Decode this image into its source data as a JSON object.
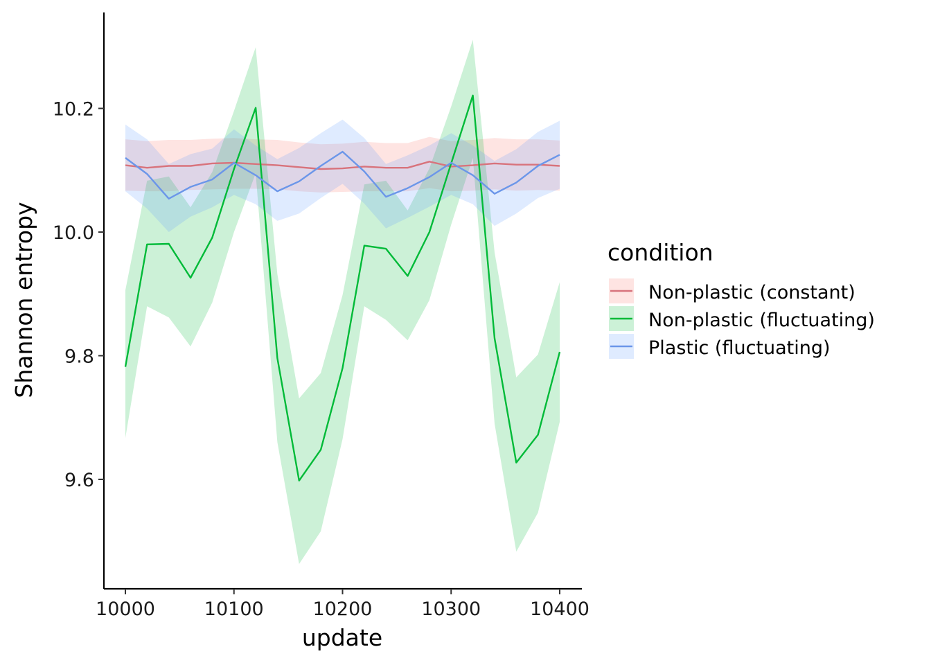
{
  "chart_data": {
    "type": "line",
    "xlabel": "update",
    "ylabel": "Shannon entropy",
    "xlim": [
      9980,
      10420
    ],
    "ylim": [
      9.435,
      10.355
    ],
    "xticks": [
      10000,
      10100,
      10200,
      10300,
      10400
    ],
    "yticks": [
      9.6,
      9.8,
      10.0,
      10.2
    ],
    "ytick_labels": [
      "9.6",
      "9.8",
      "10.0",
      "10.2"
    ],
    "grid": false,
    "legend": {
      "title": "condition",
      "position": "right"
    },
    "x": [
      10000,
      10020,
      10040,
      10060,
      10080,
      10100,
      10120,
      10140,
      10160,
      10180,
      10200,
      10220,
      10240,
      10260,
      10280,
      10300,
      10320,
      10340,
      10360,
      10380,
      10400
    ],
    "series": [
      {
        "name": "Non-plastic (constant)",
        "line_color": "#d8737c",
        "band_color": "#f8766d",
        "values": [
          10.108,
          10.104,
          10.107,
          10.107,
          10.111,
          10.112,
          10.11,
          10.108,
          10.105,
          10.102,
          10.103,
          10.106,
          10.104,
          10.104,
          10.114,
          10.106,
          10.108,
          10.111,
          10.109,
          10.109,
          10.107
        ],
        "lower": [
          10.067,
          10.066,
          10.066,
          10.068,
          10.069,
          10.07,
          10.07,
          10.069,
          10.066,
          10.064,
          10.065,
          10.066,
          10.066,
          10.066,
          10.071,
          10.066,
          10.067,
          10.069,
          10.067,
          10.068,
          10.067
        ],
        "upper": [
          10.15,
          10.147,
          10.149,
          10.149,
          10.151,
          10.152,
          10.15,
          10.149,
          10.145,
          10.142,
          10.143,
          10.146,
          10.144,
          10.144,
          10.154,
          10.147,
          10.149,
          10.152,
          10.15,
          10.15,
          10.148
        ]
      },
      {
        "name": "Non-plastic (fluctuating)",
        "line_color": "#00ba38",
        "band_color": "#00ba38",
        "values": [
          9.782,
          9.98,
          9.981,
          9.926,
          9.991,
          10.102,
          10.201,
          9.796,
          9.598,
          9.648,
          9.78,
          9.978,
          9.973,
          9.929,
          10.0,
          10.111,
          10.221,
          9.828,
          9.627,
          9.672,
          9.806
        ],
        "lower": [
          9.667,
          9.88,
          9.862,
          9.815,
          9.886,
          10.0,
          10.095,
          9.66,
          9.463,
          9.516,
          9.665,
          9.88,
          9.858,
          9.825,
          9.89,
          10.012,
          10.12,
          9.69,
          9.483,
          9.546,
          9.693
        ],
        "upper": [
          9.906,
          10.083,
          10.09,
          10.04,
          10.097,
          10.196,
          10.299,
          9.932,
          9.731,
          9.772,
          9.898,
          10.077,
          10.083,
          10.035,
          10.103,
          10.203,
          10.311,
          9.967,
          9.765,
          9.802,
          9.919
        ]
      },
      {
        "name": "Plastic (fluctuating)",
        "line_color": "#6b96e9",
        "band_color": "#619cff",
        "values": [
          10.12,
          10.094,
          10.054,
          10.073,
          10.085,
          10.112,
          10.092,
          10.066,
          10.082,
          10.107,
          10.13,
          10.098,
          10.057,
          10.071,
          10.089,
          10.112,
          10.092,
          10.062,
          10.08,
          10.107,
          10.125
        ],
        "lower": [
          10.066,
          10.038,
          10.0,
          10.025,
          10.04,
          10.06,
          10.045,
          10.018,
          10.03,
          10.055,
          10.078,
          10.046,
          10.006,
          10.023,
          10.041,
          10.06,
          10.045,
          10.01,
          10.03,
          10.055,
          10.07
        ],
        "upper": [
          10.174,
          10.15,
          10.11,
          10.126,
          10.135,
          10.166,
          10.14,
          10.118,
          10.136,
          10.16,
          10.182,
          10.152,
          10.11,
          10.124,
          10.14,
          10.16,
          10.14,
          10.115,
          10.134,
          10.162,
          10.18
        ]
      }
    ]
  }
}
